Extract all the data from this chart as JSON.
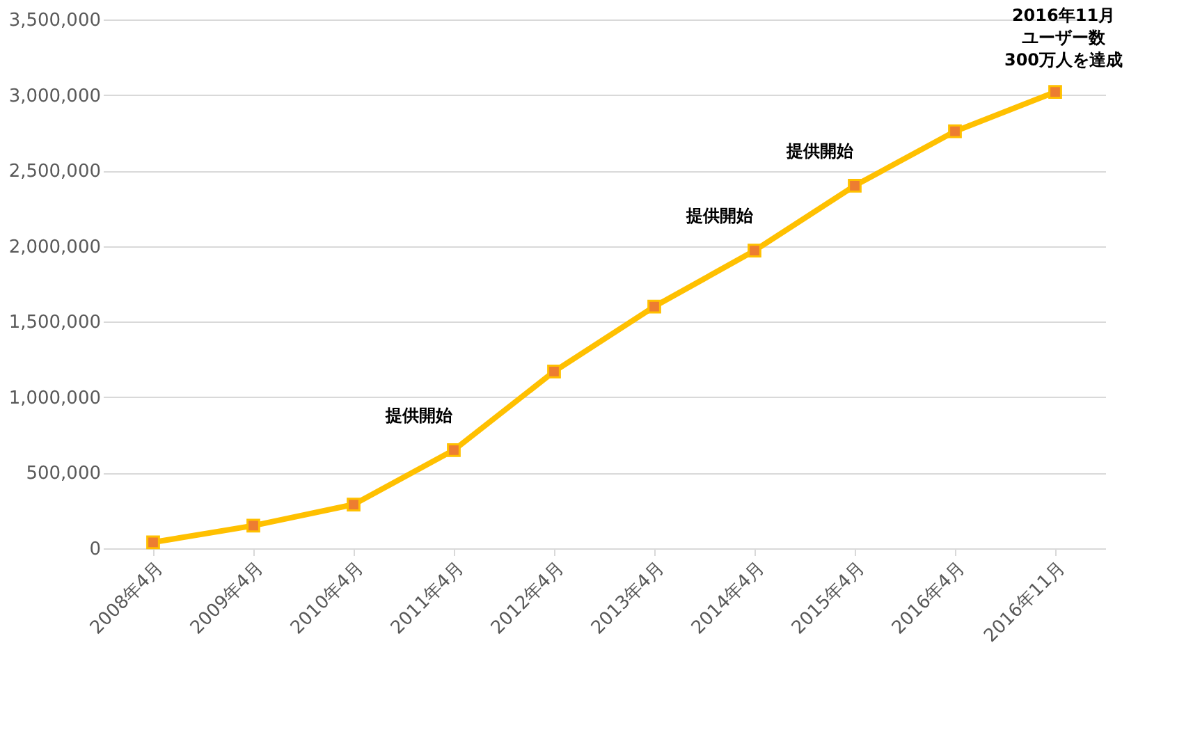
{
  "chart_data": {
    "type": "line",
    "categories": [
      "2008年4月",
      "2009年4月",
      "2010年4月",
      "2011年4月",
      "2012年4月",
      "2013年4月",
      "2014年4月",
      "2015年4月",
      "2016年4月",
      "2016年11月"
    ],
    "series": [
      {
        "color": "#ffc000",
        "values": [
          40000,
          150000,
          290000,
          650000,
          1170000,
          1600000,
          1970000,
          2400000,
          2760000,
          3020000
        ]
      }
    ],
    "ylim": [
      0,
      3500000
    ],
    "yticks": [
      0,
      {
        "value": 500000,
        "label": "500,000"
      },
      {
        "value": 1000000,
        "label": "1,000,000"
      },
      {
        "value": 1500000,
        "label": "1,500,000"
      },
      {
        "value": 2000000,
        "label": "2,000,000"
      },
      {
        "value": 2500000,
        "label": "2,500,000"
      },
      {
        "value": 3000000,
        "label": "3,000,000"
      },
      {
        "value": 3500000,
        "label": "3,500,000"
      }
    ],
    "grid": "y",
    "marker": "square",
    "line_style": "solid",
    "annotations": [
      {
        "text": "提供開始",
        "x": "2011年4月",
        "y": 650000
      },
      {
        "text": "提供開始",
        "x": "2014年4月",
        "y": 1970000
      },
      {
        "text": "提供開始",
        "x": "2015年4月",
        "y": 2400000
      },
      "2016年11月",
      "ユーザー数",
      "300万人を達成"
    ]
  }
}
